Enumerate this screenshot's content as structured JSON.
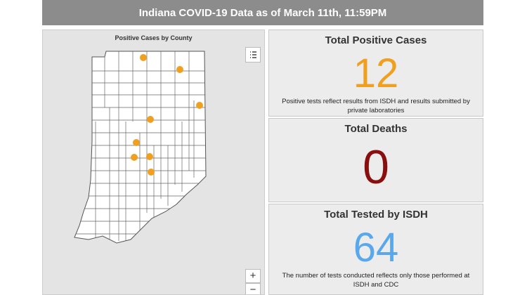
{
  "header": {
    "title": "Indiana COVID-19 Data as of March 11th, 11:59PM"
  },
  "map": {
    "title": "Positive Cases by County",
    "zoom_in": "+",
    "zoom_out": "−"
  },
  "cards": [
    {
      "title": "Total Positive Cases",
      "value": 12,
      "note": "Positive tests reflect results from ISDH and results submitted by private laboratories"
    },
    {
      "title": "Total Deaths",
      "value": 0
    },
    {
      "title": "Total Tested by ISDH",
      "value": 64,
      "note": "The number of tests conducted reflects only those performed at ISDH and CDC"
    }
  ]
}
